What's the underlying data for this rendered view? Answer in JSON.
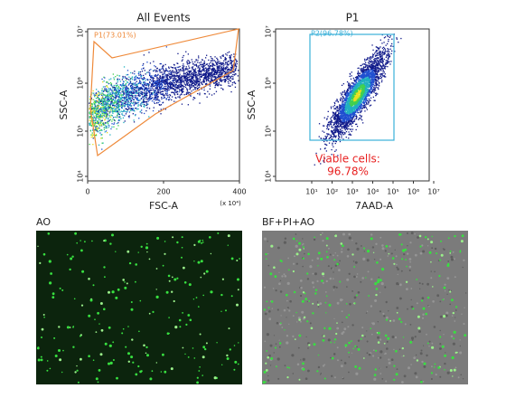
{
  "panels": [
    {
      "title": "All Events",
      "x_label": "FSC-A",
      "y_label": "SSC-A",
      "x_ticks": [
        "0",
        "200",
        "400"
      ],
      "x_unit": "(x 10⁴)",
      "y_ticks": [
        "10⁷",
        "10⁶",
        "10⁵",
        "10⁴"
      ],
      "gate": "P1(73.01%)"
    },
    {
      "title": "P1",
      "x_label": "7AAD-A",
      "y_label": "SSC-A",
      "x_ticks": [
        "10¹",
        "10²",
        "10³",
        "10⁴",
        "10⁵",
        "10⁶",
        "10⁷"
      ],
      "y_ticks": [
        "10⁷",
        "10⁶",
        "10⁵",
        "10⁴"
      ],
      "gate": "P2(96.78%)",
      "annotation": [
        "Viable cells:",
        "96.78%"
      ]
    }
  ],
  "images": [
    {
      "label": "AO"
    },
    {
      "label": "BF+PI+AO"
    }
  ]
}
